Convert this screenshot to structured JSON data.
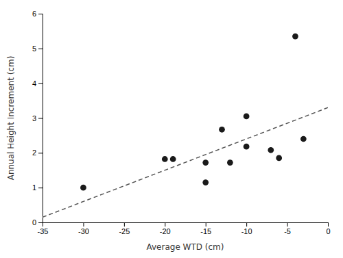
{
  "chart_data": {
    "type": "scatter",
    "xlabel": "Average WTD (cm)",
    "ylabel": "Annual Height Increment (cm)",
    "series": [
      {
        "type": "scatter",
        "marker": "circle",
        "color": "#1a1a1a",
        "x": [
          -30,
          -20,
          -19,
          -15,
          -15,
          -13,
          -12,
          -10,
          -10,
          -7,
          -6,
          -4,
          -3
        ],
        "values": [
          1.0,
          1.82,
          1.82,
          1.72,
          1.15,
          2.67,
          1.72,
          3.05,
          2.18,
          2.08,
          1.85,
          5.35,
          2.4
        ]
      },
      {
        "type": "line",
        "line_style": "dashed",
        "color": "#555555",
        "x": [
          -35,
          0
        ],
        "values": [
          0.15,
          3.3
        ]
      }
    ],
    "xlim": [
      -35,
      0
    ],
    "ylim": [
      0,
      6
    ],
    "xticks": [
      -35,
      -30,
      -25,
      -20,
      -15,
      -10,
      -5,
      0
    ],
    "yticks": [
      0,
      1,
      2,
      3,
      4,
      5,
      6
    ],
    "grid": false
  }
}
